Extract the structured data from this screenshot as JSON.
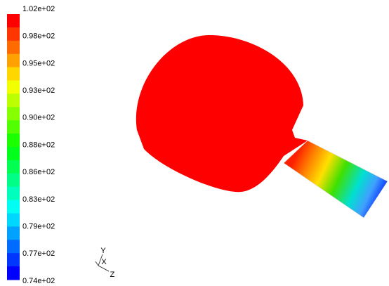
{
  "colorbar": {
    "labels": [
      "1.02e+02",
      "0.98e+02",
      "0.95e+02",
      "0.93e+02",
      "0.90e+02",
      "0.88e+02",
      "0.86e+02",
      "0.83e+02",
      "0.79e+02",
      "0.77e+02",
      "0.74e+02"
    ]
  },
  "axes": {
    "y": "Y",
    "x": "X",
    "z": "Z"
  }
}
